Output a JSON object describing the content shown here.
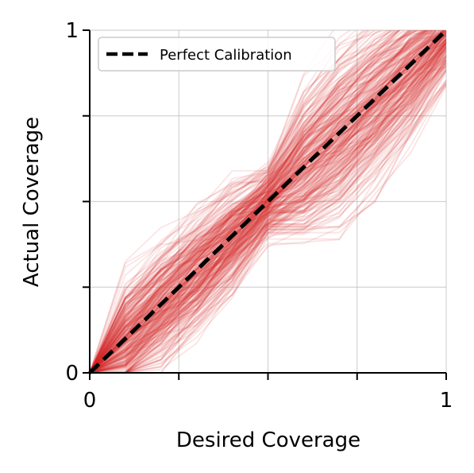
{
  "chart_data": {
    "type": "line",
    "title": "",
    "xlabel": "Desired Coverage",
    "ylabel": "Actual Coverage",
    "xlim": [
      0,
      1
    ],
    "ylim": [
      0,
      1
    ],
    "x_ticks": [
      0,
      0.25,
      0.5,
      0.75,
      1
    ],
    "y_ticks": [
      0,
      0.25,
      0.5,
      0.75,
      1
    ],
    "x_tick_labels": [
      "0",
      "",
      "",
      "",
      "1"
    ],
    "y_tick_labels": [
      "0",
      "",
      "",
      "",
      "1"
    ],
    "grid": true,
    "legend_position": "top-left",
    "legend": [
      "Perfect Calibration"
    ],
    "series": [
      {
        "name": "Perfect Calibration",
        "style": "dashed",
        "color": "#000000",
        "x": [
          0,
          1
        ],
        "y": [
          0,
          1
        ]
      }
    ],
    "calibration_curves": {
      "color": "#d62728",
      "count": 300,
      "opacity": 0.12,
      "x": [
        0,
        0.1,
        0.2,
        0.3,
        0.4,
        0.5,
        0.6,
        0.7,
        0.8,
        0.9,
        1.0
      ],
      "y_median": [
        0,
        0.1,
        0.2,
        0.3,
        0.4,
        0.5,
        0.6,
        0.7,
        0.8,
        0.9,
        1.0
      ],
      "y_spread": [
        0,
        0.09,
        0.1,
        0.1,
        0.09,
        0.06,
        0.13,
        0.15,
        0.14,
        0.12,
        0.08
      ]
    }
  }
}
